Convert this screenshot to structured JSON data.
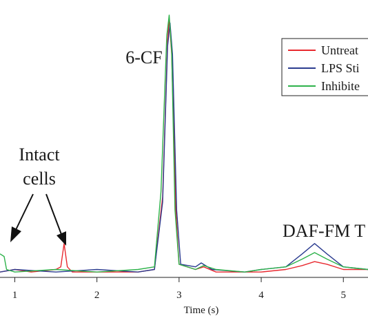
{
  "chart_data": {
    "type": "line",
    "xlabel": "Time (s)",
    "ylabel": "",
    "xlim": [
      0.82,
      5.3
    ],
    "ylim": [
      0,
      1
    ],
    "x_ticks": [
      1,
      2,
      3,
      4,
      5
    ],
    "grid": false,
    "legend": {
      "placement": "top-right",
      "entries": [
        "Untreat",
        "LPS Sti",
        "Inhibite"
      ]
    },
    "annotations": {
      "cf": "6-CF",
      "daf": "DAF-FM T",
      "cells_line1": "Intact",
      "cells_line2": "cells"
    },
    "series": [
      {
        "name": "Untreat",
        "color": "#e8282e",
        "points": [
          [
            0.82,
            0.01
          ],
          [
            1.0,
            0.02
          ],
          [
            1.2,
            0.01
          ],
          [
            1.5,
            0.02
          ],
          [
            1.56,
            0.03
          ],
          [
            1.6,
            0.12
          ],
          [
            1.64,
            0.03
          ],
          [
            1.7,
            0.01
          ],
          [
            2.0,
            0.01
          ],
          [
            2.5,
            0.01
          ],
          [
            2.7,
            0.02
          ],
          [
            2.8,
            0.3
          ],
          [
            2.86,
            0.9
          ],
          [
            2.88,
            0.99
          ],
          [
            2.91,
            0.85
          ],
          [
            2.96,
            0.25
          ],
          [
            3.0,
            0.04
          ],
          [
            3.2,
            0.02
          ],
          [
            3.3,
            0.03
          ],
          [
            3.45,
            0.01
          ],
          [
            3.8,
            0.01
          ],
          [
            4.0,
            0.01
          ],
          [
            4.3,
            0.02
          ],
          [
            4.5,
            0.035
          ],
          [
            4.65,
            0.05
          ],
          [
            4.8,
            0.04
          ],
          [
            5.0,
            0.02
          ],
          [
            5.3,
            0.02
          ]
        ]
      },
      {
        "name": "LPS Sti",
        "color": "#2a3b8f",
        "points": [
          [
            0.82,
            0.01
          ],
          [
            1.0,
            0.02
          ],
          [
            1.5,
            0.01
          ],
          [
            2.0,
            0.02
          ],
          [
            2.5,
            0.01
          ],
          [
            2.7,
            0.02
          ],
          [
            2.8,
            0.28
          ],
          [
            2.86,
            0.88
          ],
          [
            2.89,
            0.97
          ],
          [
            2.92,
            0.85
          ],
          [
            2.97,
            0.25
          ],
          [
            3.02,
            0.04
          ],
          [
            3.2,
            0.03
          ],
          [
            3.27,
            0.045
          ],
          [
            3.4,
            0.02
          ],
          [
            3.8,
            0.01
          ],
          [
            4.0,
            0.02
          ],
          [
            4.3,
            0.03
          ],
          [
            4.5,
            0.08
          ],
          [
            4.65,
            0.12
          ],
          [
            4.8,
            0.08
          ],
          [
            5.0,
            0.03
          ],
          [
            5.3,
            0.02
          ]
        ]
      },
      {
        "name": "Inhibite",
        "color": "#2db24a",
        "points": [
          [
            0.82,
            0.08
          ],
          [
            0.87,
            0.07
          ],
          [
            0.9,
            0.02
          ],
          [
            1.0,
            0.01
          ],
          [
            1.5,
            0.02
          ],
          [
            2.0,
            0.01
          ],
          [
            2.5,
            0.02
          ],
          [
            2.7,
            0.03
          ],
          [
            2.78,
            0.32
          ],
          [
            2.85,
            0.92
          ],
          [
            2.88,
            1.0
          ],
          [
            2.91,
            0.86
          ],
          [
            2.95,
            0.25
          ],
          [
            3.0,
            0.04
          ],
          [
            3.2,
            0.02
          ],
          [
            3.3,
            0.035
          ],
          [
            3.45,
            0.02
          ],
          [
            3.8,
            0.01
          ],
          [
            4.0,
            0.02
          ],
          [
            4.3,
            0.03
          ],
          [
            4.5,
            0.06
          ],
          [
            4.65,
            0.085
          ],
          [
            4.8,
            0.06
          ],
          [
            5.0,
            0.03
          ],
          [
            5.3,
            0.02
          ]
        ]
      }
    ]
  }
}
